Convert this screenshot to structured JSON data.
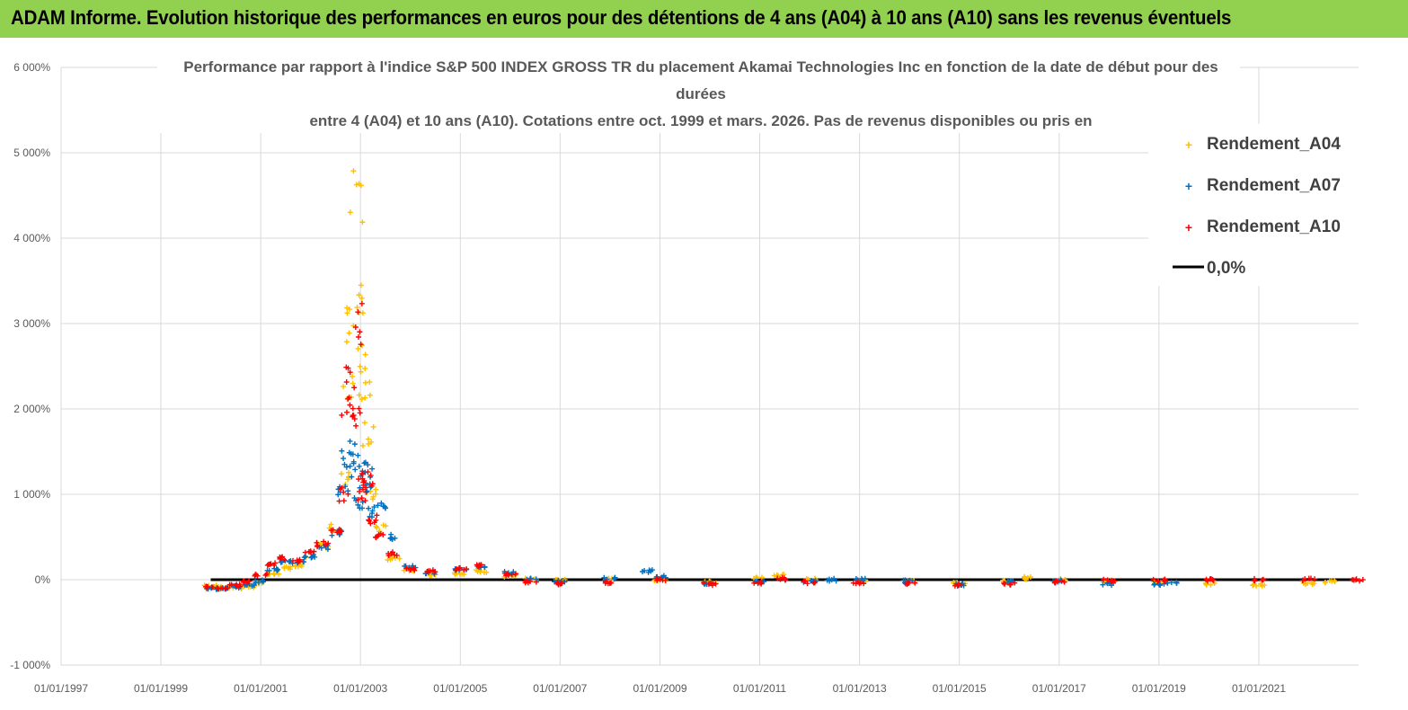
{
  "header": {
    "title": "ADAM Informe. Evolution historique des performances en euros pour des détentions de 4 ans (A04) à 10 ans (A10) sans les revenus éventuels"
  },
  "colors": {
    "header_bg": "#92d050",
    "a04": "#ffc000",
    "a07": "#0070c0",
    "a10": "#ff0000",
    "zero": "#000000"
  },
  "chart_data": {
    "type": "scatter",
    "title_lines": [
      "Performance par rapport à l'indice S&P 500 INDEX GROSS TR  du placement Akamai Technologies Inc en fonction de la date de début pour des",
      "durées",
      "entre 4 (A04) et 10 ans (A10).  Cotations entre oct. 1999 et mars. 2026. Pas de revenus disponibles ou pris en"
    ],
    "x_axis": {
      "type": "date",
      "min": "1997-01-01",
      "max": "2023-01-01",
      "tick_labels": [
        "01/01/1997",
        "01/01/1999",
        "01/01/2001",
        "01/01/2003",
        "01/01/2005",
        "01/01/2007",
        "01/01/2009",
        "01/01/2011",
        "01/01/2013",
        "01/01/2015",
        "01/01/2017",
        "01/01/2019",
        "01/01/2021"
      ]
    },
    "y_axis": {
      "min": -1000,
      "max": 6000,
      "step": 1000,
      "unit": "%",
      "tick_labels": [
        "-1 000%",
        "0%",
        "1 000%",
        "2 000%",
        "3 000%",
        "4 000%",
        "5 000%",
        "6 000%"
      ]
    },
    "grid": true,
    "legend": {
      "position": "top-right",
      "entries": [
        "Rendement_A04",
        "Rendement_A07",
        "Rendement_A10",
        "0,0%"
      ]
    },
    "zero_line": {
      "name": "0,0%",
      "x_start": "2000-01-01",
      "x_end": "2023-01-01",
      "y": 0
    },
    "series": [
      {
        "name": "Rendement_A04",
        "color": "#ffc000",
        "points": [
          [
            "2000-01-01",
            -80
          ],
          [
            "2000-04-01",
            -100
          ],
          [
            "2000-07-01",
            -90
          ],
          [
            "2000-10-01",
            -80
          ],
          [
            "2001-01-01",
            -40
          ],
          [
            "2001-04-01",
            60
          ],
          [
            "2001-07-01",
            140
          ],
          [
            "2001-10-01",
            160
          ],
          [
            "2002-01-01",
            260
          ],
          [
            "2002-04-01",
            400
          ],
          [
            "2002-07-01",
            600
          ],
          [
            "2002-09-01",
            1200
          ],
          [
            "2002-10-01",
            2200
          ],
          [
            "2002-11-01",
            3000
          ],
          [
            "2002-12-01",
            4500
          ],
          [
            "2002-12-15",
            3200
          ],
          [
            "2003-01-01",
            2600
          ],
          [
            "2003-02-01",
            2200
          ],
          [
            "2003-03-01",
            1700
          ],
          [
            "2003-04-01",
            1000
          ],
          [
            "2003-06-01",
            600
          ],
          [
            "2003-09-01",
            250
          ],
          [
            "2004-01-01",
            100
          ],
          [
            "2004-06-01",
            60
          ],
          [
            "2005-01-01",
            70
          ],
          [
            "2005-06-01",
            100
          ],
          [
            "2006-01-01",
            40
          ],
          [
            "2006-06-01",
            10
          ],
          [
            "2007-01-01",
            -10
          ],
          [
            "2008-01-01",
            0
          ],
          [
            "2009-01-01",
            0
          ],
          [
            "2010-01-01",
            -30
          ],
          [
            "2011-01-01",
            20
          ],
          [
            "2011-06-01",
            50
          ],
          [
            "2012-01-01",
            0
          ],
          [
            "2013-01-01",
            -10
          ],
          [
            "2014-01-01",
            -20
          ],
          [
            "2015-01-01",
            -40
          ],
          [
            "2016-01-01",
            -20
          ],
          [
            "2016-06-01",
            20
          ],
          [
            "2017-01-01",
            0
          ],
          [
            "2018-01-01",
            -20
          ],
          [
            "2019-01-01",
            -30
          ],
          [
            "2020-01-01",
            -50
          ],
          [
            "2021-01-01",
            -60
          ],
          [
            "2022-01-01",
            -40
          ],
          [
            "2022-06-01",
            -20
          ]
        ]
      },
      {
        "name": "Rendement_A07",
        "color": "#0070c0",
        "points": [
          [
            "2000-01-01",
            -100
          ],
          [
            "2000-04-01",
            -100
          ],
          [
            "2000-07-01",
            -80
          ],
          [
            "2000-10-01",
            -60
          ],
          [
            "2001-01-01",
            -20
          ],
          [
            "2001-04-01",
            120
          ],
          [
            "2001-07-01",
            220
          ],
          [
            "2001-10-01",
            200
          ],
          [
            "2002-01-01",
            280
          ],
          [
            "2002-04-01",
            380
          ],
          [
            "2002-07-01",
            550
          ],
          [
            "2002-09-01",
            1050
          ],
          [
            "2002-10-01",
            1400
          ],
          [
            "2002-11-01",
            1500
          ],
          [
            "2002-12-01",
            1300
          ],
          [
            "2003-01-01",
            900
          ],
          [
            "2003-02-01",
            1100
          ],
          [
            "2003-03-01",
            1300
          ],
          [
            "2003-04-01",
            800
          ],
          [
            "2003-06-01",
            850
          ],
          [
            "2003-09-01",
            500
          ],
          [
            "2004-01-01",
            150
          ],
          [
            "2004-06-01",
            80
          ],
          [
            "2005-01-01",
            120
          ],
          [
            "2005-06-01",
            150
          ],
          [
            "2006-01-01",
            80
          ],
          [
            "2006-06-01",
            10
          ],
          [
            "2007-01-01",
            -20
          ],
          [
            "2008-01-01",
            10
          ],
          [
            "2008-10-01",
            100
          ],
          [
            "2009-01-01",
            30
          ],
          [
            "2010-01-01",
            -40
          ],
          [
            "2011-01-01",
            -20
          ],
          [
            "2012-01-01",
            -20
          ],
          [
            "2012-06-01",
            0
          ],
          [
            "2013-01-01",
            0
          ],
          [
            "2014-01-01",
            -20
          ],
          [
            "2015-01-01",
            -60
          ],
          [
            "2016-01-01",
            -20
          ],
          [
            "2017-01-01",
            -20
          ],
          [
            "2018-01-01",
            -50
          ],
          [
            "2019-01-01",
            -60
          ],
          [
            "2019-04-01",
            -40
          ]
        ]
      },
      {
        "name": "Rendement_A10",
        "color": "#ff0000",
        "points": [
          [
            "2000-01-01",
            -90
          ],
          [
            "2000-04-01",
            -100
          ],
          [
            "2000-07-01",
            -70
          ],
          [
            "2000-10-01",
            -30
          ],
          [
            "2001-01-01",
            50
          ],
          [
            "2001-04-01",
            180
          ],
          [
            "2001-07-01",
            250
          ],
          [
            "2001-10-01",
            220
          ],
          [
            "2002-01-01",
            320
          ],
          [
            "2002-04-01",
            420
          ],
          [
            "2002-07-01",
            600
          ],
          [
            "2002-09-01",
            1000
          ],
          [
            "2002-10-01",
            2000
          ],
          [
            "2002-11-01",
            2300
          ],
          [
            "2002-12-01",
            1900
          ],
          [
            "2002-12-15",
            3000
          ],
          [
            "2003-01-01",
            1000
          ],
          [
            "2003-02-01",
            1200
          ],
          [
            "2003-03-01",
            1100
          ],
          [
            "2003-04-01",
            700
          ],
          [
            "2003-06-01",
            500
          ],
          [
            "2003-09-01",
            300
          ],
          [
            "2004-01-01",
            120
          ],
          [
            "2004-06-01",
            100
          ],
          [
            "2005-01-01",
            130
          ],
          [
            "2005-06-01",
            160
          ],
          [
            "2006-01-01",
            60
          ],
          [
            "2006-06-01",
            -20
          ],
          [
            "2007-01-01",
            -50
          ],
          [
            "2008-01-01",
            -30
          ],
          [
            "2009-01-01",
            0
          ],
          [
            "2010-01-01",
            -50
          ],
          [
            "2011-01-01",
            -40
          ],
          [
            "2011-06-01",
            10
          ],
          [
            "2012-01-01",
            -30
          ],
          [
            "2013-01-01",
            -30
          ],
          [
            "2014-01-01",
            -40
          ],
          [
            "2015-01-01",
            -60
          ],
          [
            "2016-01-01",
            -50
          ],
          [
            "2017-01-01",
            -20
          ],
          [
            "2018-01-01",
            -10
          ],
          [
            "2019-01-01",
            -10
          ],
          [
            "2020-01-01",
            0
          ],
          [
            "2021-01-01",
            0
          ],
          [
            "2022-01-01",
            0
          ],
          [
            "2023-01-01",
            0
          ]
        ]
      }
    ]
  }
}
